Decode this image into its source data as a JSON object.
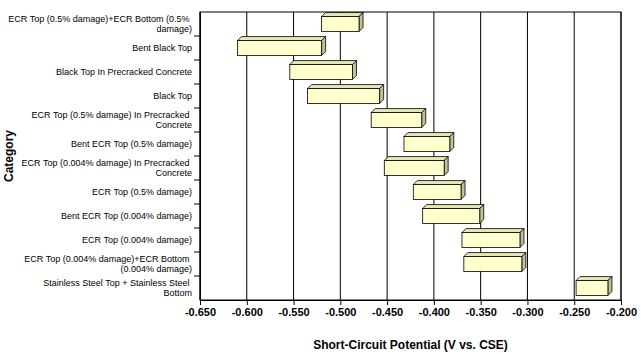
{
  "chart_data": {
    "type": "floating_bar",
    "orientation": "horizontal",
    "x_label": "Short-Circuit Potential (V vs. CSE)",
    "y_label": "Category",
    "categories": [
      "ECR Top (0.5% damage)+ECR Bottom (0.5% damage)",
      "Bent Black Top",
      "Black Top In Precracked Concrete",
      "Black Top",
      "ECR Top (0.5% damage) In Precracked Concrete",
      "Bent ECR Top (0.5% damage)",
      "ECR Top (0.004% damage) In Precracked Concrete",
      "ECR Top (0.5% damage)",
      "Bent ECR Top (0.004% damage)",
      "ECR Top (0.004% damage)",
      "ECR Top (0.004% damage)+ECR Bottom (0.004% damage)",
      "Stainless Steel Top + Stainless Steel Bottom"
    ],
    "values": [
      [
        -0.52,
        -0.48
      ],
      [
        -0.61,
        -0.52
      ],
      [
        -0.554,
        -0.487
      ],
      [
        -0.535,
        -0.458
      ],
      [
        -0.467,
        -0.413
      ],
      [
        -0.432,
        -0.383
      ],
      [
        -0.453,
        -0.389
      ],
      [
        -0.422,
        -0.371
      ],
      [
        -0.412,
        -0.351
      ],
      [
        -0.37,
        -0.308
      ],
      [
        -0.368,
        -0.306
      ],
      [
        -0.248,
        -0.214
      ]
    ],
    "color": "#ffffcc",
    "xlim": [
      -0.65,
      -0.2
    ],
    "xticks": [
      {
        "value": -0.65,
        "label": "-0.650"
      },
      {
        "value": -0.6,
        "label": "-0.600"
      },
      {
        "value": -0.55,
        "label": "-0.550"
      },
      {
        "value": -0.5,
        "label": "-0.500"
      },
      {
        "value": -0.45,
        "label": "-0.450"
      },
      {
        "value": -0.4,
        "label": "-0.400"
      },
      {
        "value": -0.35,
        "label": "-0.350"
      },
      {
        "value": -0.3,
        "label": "-0.300"
      },
      {
        "value": -0.25,
        "label": "-0.250"
      },
      {
        "value": -0.2,
        "label": "-0.200"
      }
    ],
    "grid": true
  }
}
